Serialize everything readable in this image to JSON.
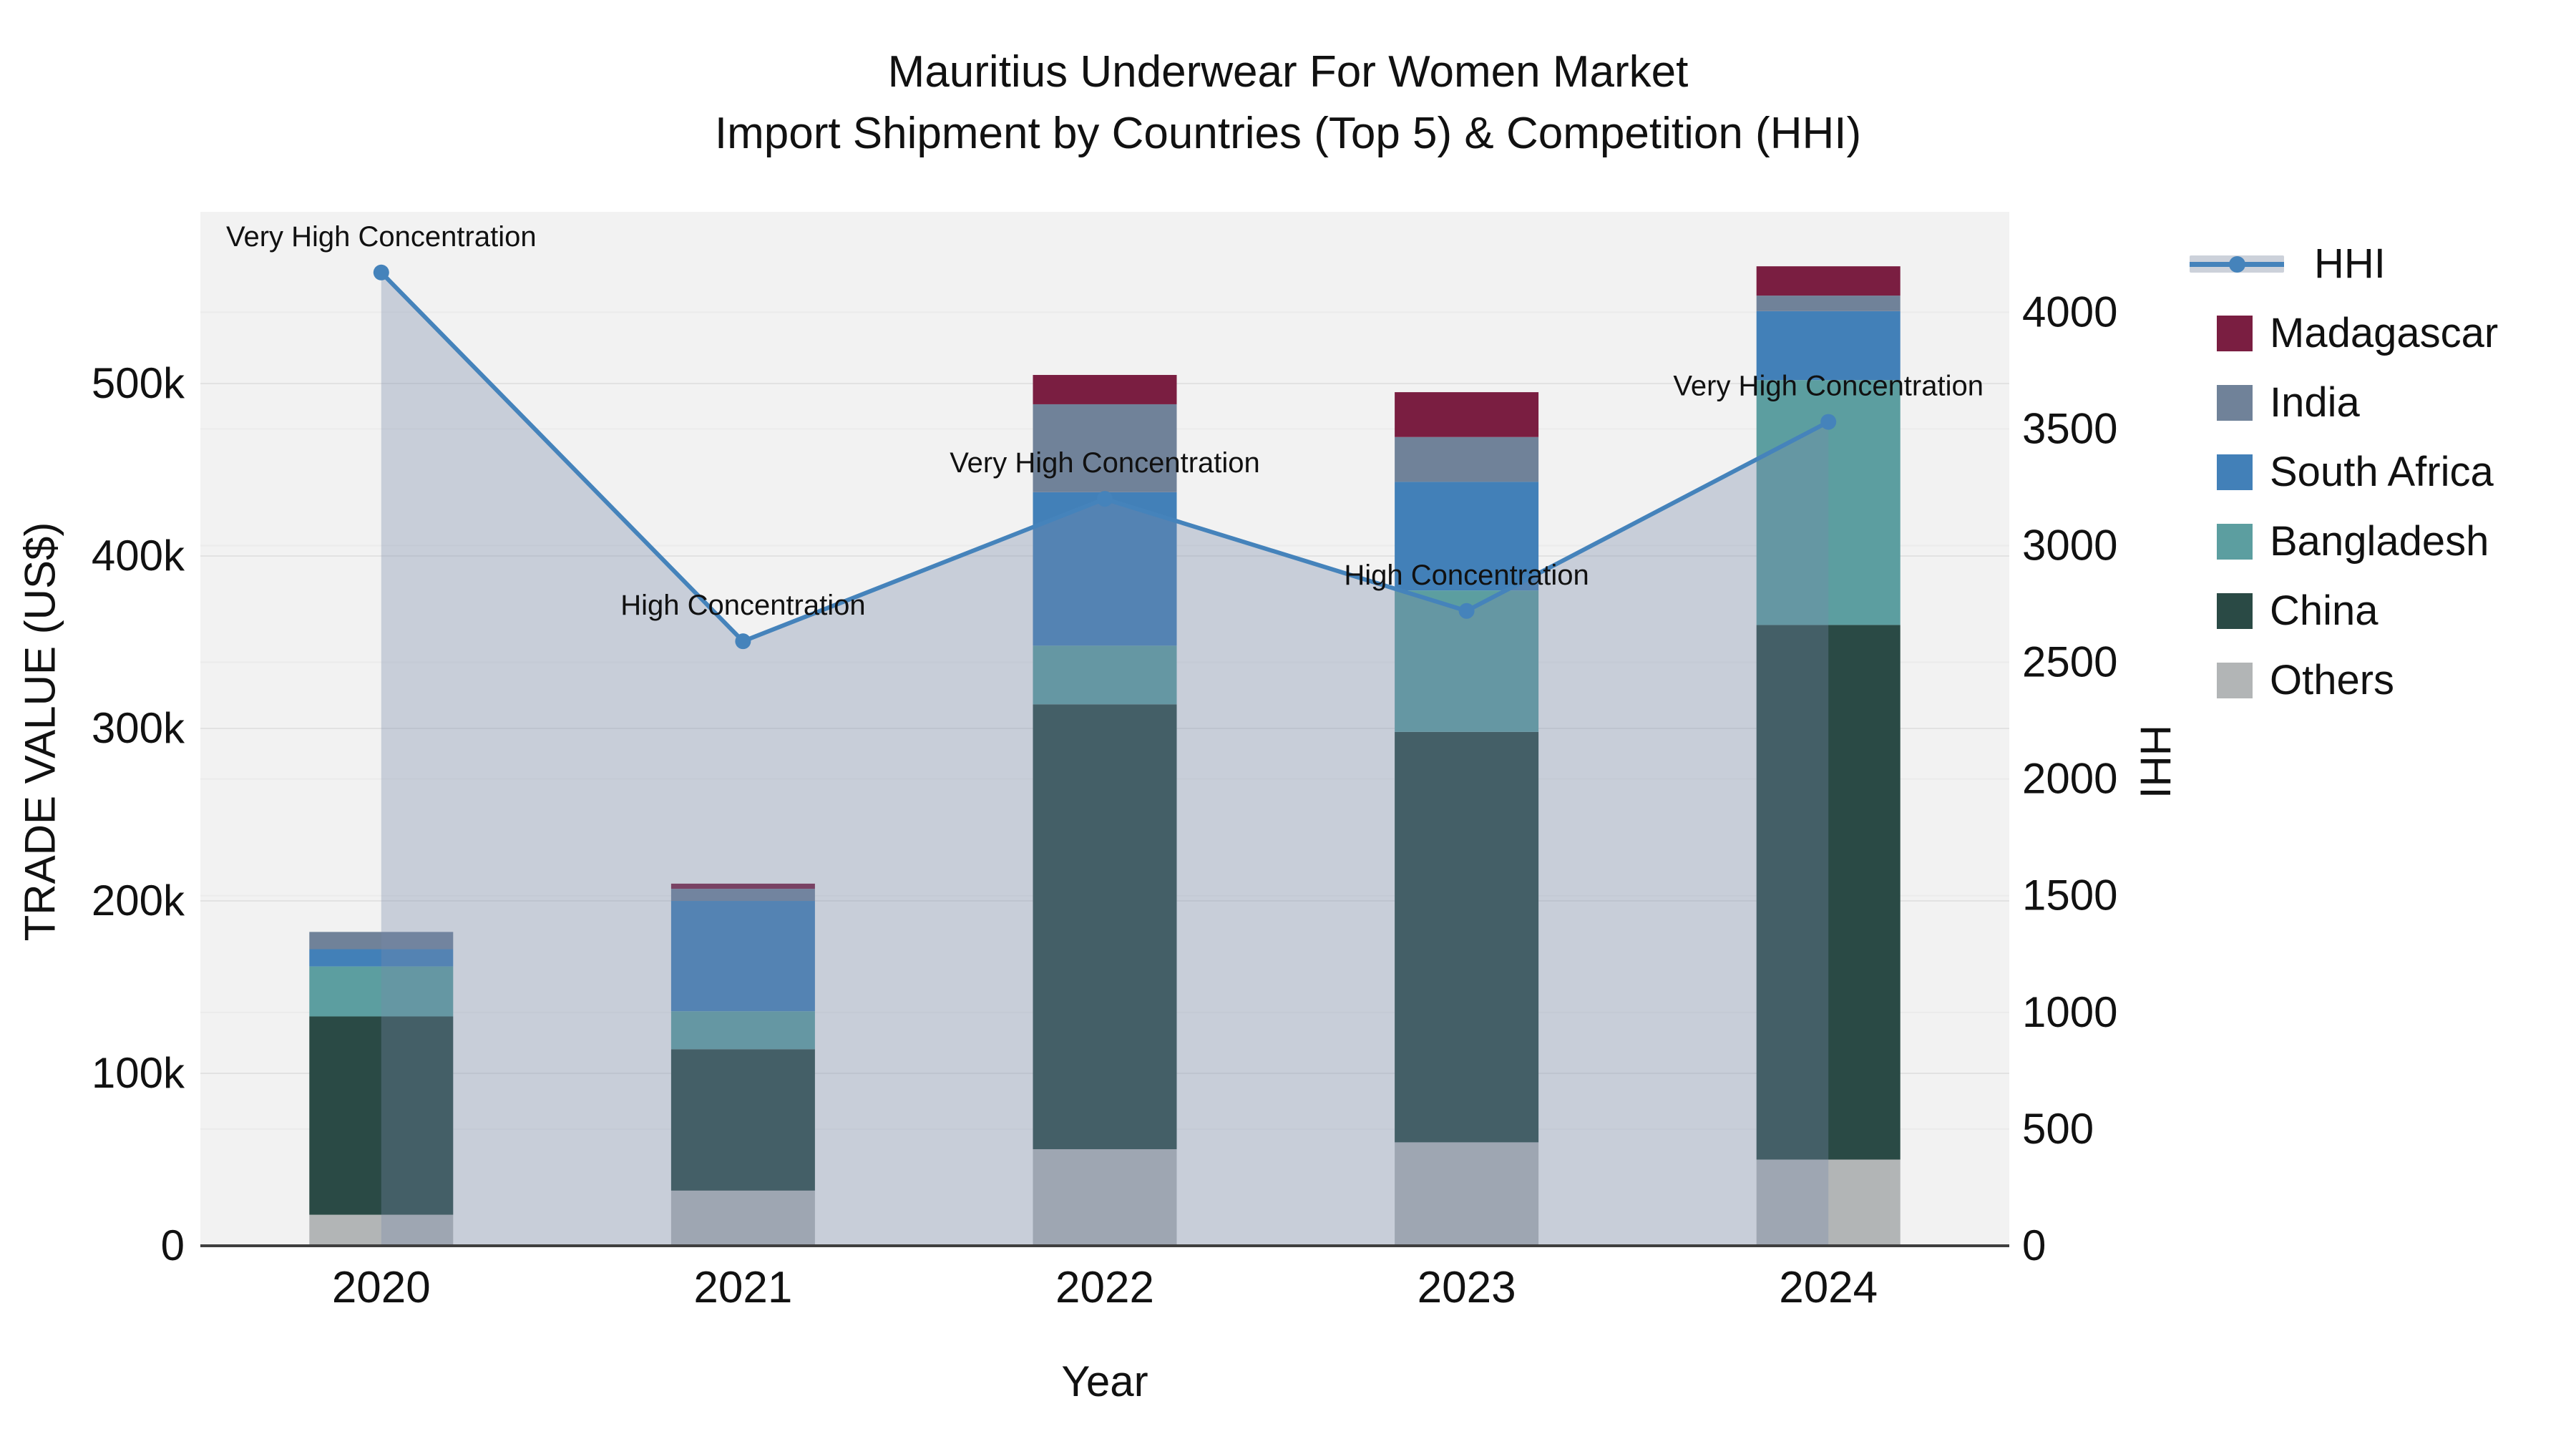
{
  "title": {
    "line1": "Mauritius Underwear For Women Market",
    "line2": "Import Shipment by Countries (Top 5) & Competition (HHI)"
  },
  "chart_data": {
    "type": "combo",
    "subtypes": [
      "stacked-bar",
      "line-area"
    ],
    "categories": [
      "2020",
      "2021",
      "2022",
      "2023",
      "2024"
    ],
    "series": [
      {
        "name": "Others",
        "type": "bar",
        "axis": "left",
        "color": "#b2b5b6",
        "values": [
          18000,
          32000,
          56000,
          60000,
          50000
        ]
      },
      {
        "name": "China",
        "type": "bar",
        "axis": "left",
        "color": "#2a4a45",
        "values": [
          115000,
          82000,
          258000,
          238000,
          310000
        ]
      },
      {
        "name": "Bangladesh",
        "type": "bar",
        "axis": "left",
        "color": "#5c9ea0",
        "values": [
          29000,
          22000,
          34000,
          82000,
          142000
        ]
      },
      {
        "name": "South Africa",
        "type": "bar",
        "axis": "left",
        "color": "#4280b8",
        "values": [
          10000,
          64000,
          89000,
          63000,
          40000
        ]
      },
      {
        "name": "India",
        "type": "bar",
        "axis": "left",
        "color": "#708299",
        "values": [
          10000,
          7000,
          51000,
          26000,
          9000
        ]
      },
      {
        "name": "Madagascar",
        "type": "bar",
        "axis": "left",
        "color": "#7a1e41",
        "values": [
          0,
          3000,
          17000,
          26000,
          17000
        ]
      }
    ],
    "hhi": {
      "name": "HHI",
      "type": "line",
      "axis": "right",
      "line_color": "#4583bb",
      "area_fill": "rgba(120,137,170,0.34)",
      "values": [
        4170,
        2590,
        3200,
        2720,
        3530
      ]
    },
    "annotations": [
      {
        "category": "2020",
        "text": "Very High Concentration"
      },
      {
        "category": "2021",
        "text": "High Concentration"
      },
      {
        "category": "2022",
        "text": "Very High Concentration"
      },
      {
        "category": "2023",
        "text": "High Concentration"
      },
      {
        "category": "2024",
        "text": "Very High Concentration"
      }
    ],
    "left_axis": {
      "title": "TRADE VALUE (US$)",
      "tick_values": [
        0,
        100000,
        200000,
        300000,
        400000,
        500000
      ],
      "tick_labels": [
        "0",
        "100k",
        "200k",
        "300k",
        "400k",
        "500k"
      ],
      "range": [
        0,
        599600
      ]
    },
    "right_axis": {
      "title": "HHI",
      "tick_values": [
        0,
        500,
        1000,
        1500,
        2000,
        2500,
        3000,
        3500,
        4000
      ],
      "tick_labels": [
        "0",
        "500",
        "1000",
        "1500",
        "2000",
        "2500",
        "3000",
        "3500",
        "4000"
      ],
      "range": [
        0,
        4430
      ]
    },
    "x_axis": {
      "title": "Year"
    },
    "plot_bg": "#f2f2f2",
    "grid_color_left": "#e2e2e2",
    "grid_color_right": "#ebebeb",
    "axis_line_color": "#3f3f3f",
    "legend_position": "right"
  },
  "legend": {
    "items": [
      {
        "label": "HHI",
        "type": "line",
        "color": "#4583bb"
      },
      {
        "label": "Madagascar",
        "type": "square",
        "color": "#7a1e41"
      },
      {
        "label": "India",
        "type": "square",
        "color": "#708299"
      },
      {
        "label": "South Africa",
        "type": "square",
        "color": "#4280b8"
      },
      {
        "label": "Bangladesh",
        "type": "square",
        "color": "#5c9ea0"
      },
      {
        "label": "China",
        "type": "square",
        "color": "#2a4a45"
      },
      {
        "label": "Others",
        "type": "square",
        "color": "#b2b5b6"
      }
    ]
  }
}
